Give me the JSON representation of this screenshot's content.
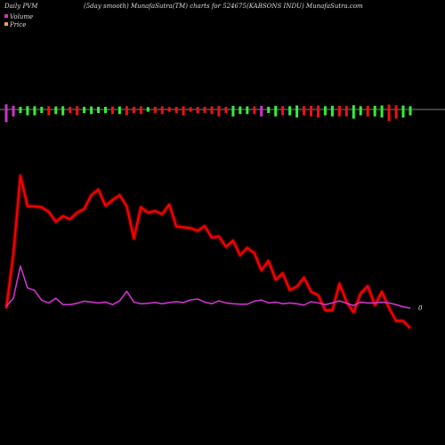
{
  "header": {
    "left": "Daily PVM",
    "middle": "(5day smooth) MunafaSutra(TM) charts for 524675",
    "right": "(KABSONS INDU) MunafaSutra.com"
  },
  "legend": {
    "volume": "Volume",
    "price": "Price"
  },
  "colors": {
    "background": "#000000",
    "price_line": "#ff0000",
    "pvm_line": "#cc33cc",
    "volume_up": "#33ee33",
    "volume_down": "#ee1111",
    "volume_mid": "#cc33cc",
    "baseline": "#aaaaaa",
    "legend_volume": "#cc33cc",
    "legend_price": "#e8a060"
  },
  "chart_data": {
    "type": "line",
    "last_value_label": "0",
    "series": [
      {
        "name": "Price",
        "values": [
          6.5,
          19.1,
          37.4,
          30.3,
          30.3,
          30.1,
          29.0,
          26.7,
          28.0,
          27.3,
          28.8,
          29.7,
          32.9,
          34.2,
          30.4,
          31.8,
          32.9,
          30.3,
          22.8,
          30.1,
          28.8,
          29.2,
          28.5,
          30.7,
          25.6,
          25.4,
          25.2,
          24.6,
          25.7,
          23.0,
          23.3,
          20.9,
          22.3,
          18.9,
          20.6,
          19.4,
          15.4,
          17.6,
          13.2,
          14.7,
          10.8,
          11.6,
          13.7,
          10.4,
          9.6,
          6.1,
          6.1,
          12.3,
          8.1,
          5.6,
          10.0,
          11.7,
          7.3,
          10.4,
          6.6,
          3.6,
          3.6,
          1.9
        ]
      },
      {
        "name": "PVM",
        "values": [
          7.0,
          8.9,
          16.4,
          11.3,
          10.7,
          8.4,
          7.8,
          8.9,
          7.4,
          7.4,
          7.7,
          8.2,
          8.0,
          7.8,
          8.0,
          7.4,
          8.3,
          10.5,
          8.0,
          7.6,
          7.7,
          7.9,
          7.6,
          7.9,
          8.1,
          7.9,
          8.5,
          8.7,
          8.0,
          7.6,
          8.3,
          7.8,
          7.6,
          7.5,
          7.5,
          8.2,
          8.5,
          7.8,
          8.0,
          7.6,
          7.8,
          7.6,
          7.3,
          8.1,
          7.8,
          7.4,
          7.8,
          8.3,
          7.7,
          7.2,
          8.0,
          7.8,
          7.8,
          8.0,
          7.8,
          7.4,
          6.9,
          6.6
        ]
      },
      {
        "name": "Volume",
        "values": [
          11,
          6,
          3,
          5,
          5,
          3,
          5,
          4,
          5,
          3,
          5,
          3,
          4,
          3,
          3,
          4,
          4,
          5,
          3,
          4,
          2,
          3,
          4,
          2,
          3,
          5,
          2,
          3,
          3,
          4,
          6,
          3,
          6,
          4,
          4,
          4,
          6,
          3,
          6,
          5,
          5,
          7,
          5,
          6,
          7,
          5,
          6,
          6,
          6,
          8,
          5,
          6,
          6,
          7,
          10,
          8,
          7,
          5
        ],
        "colors": [
          "mid",
          "mid",
          "up",
          "up",
          "up",
          "up",
          "down",
          "up",
          "up",
          "down",
          "down",
          "up",
          "up",
          "up",
          "up",
          "down",
          "up",
          "down",
          "down",
          "down",
          "up",
          "down",
          "down",
          "down",
          "down",
          "down",
          "down",
          "down",
          "down",
          "down",
          "down",
          "down",
          "up",
          "up",
          "up",
          "down",
          "mid",
          "up",
          "up",
          "down",
          "up",
          "up",
          "down",
          "down",
          "down",
          "up",
          "up",
          "down",
          "down",
          "up",
          "up",
          "down",
          "up",
          "up",
          "down",
          "down",
          "up",
          "up"
        ]
      }
    ]
  }
}
